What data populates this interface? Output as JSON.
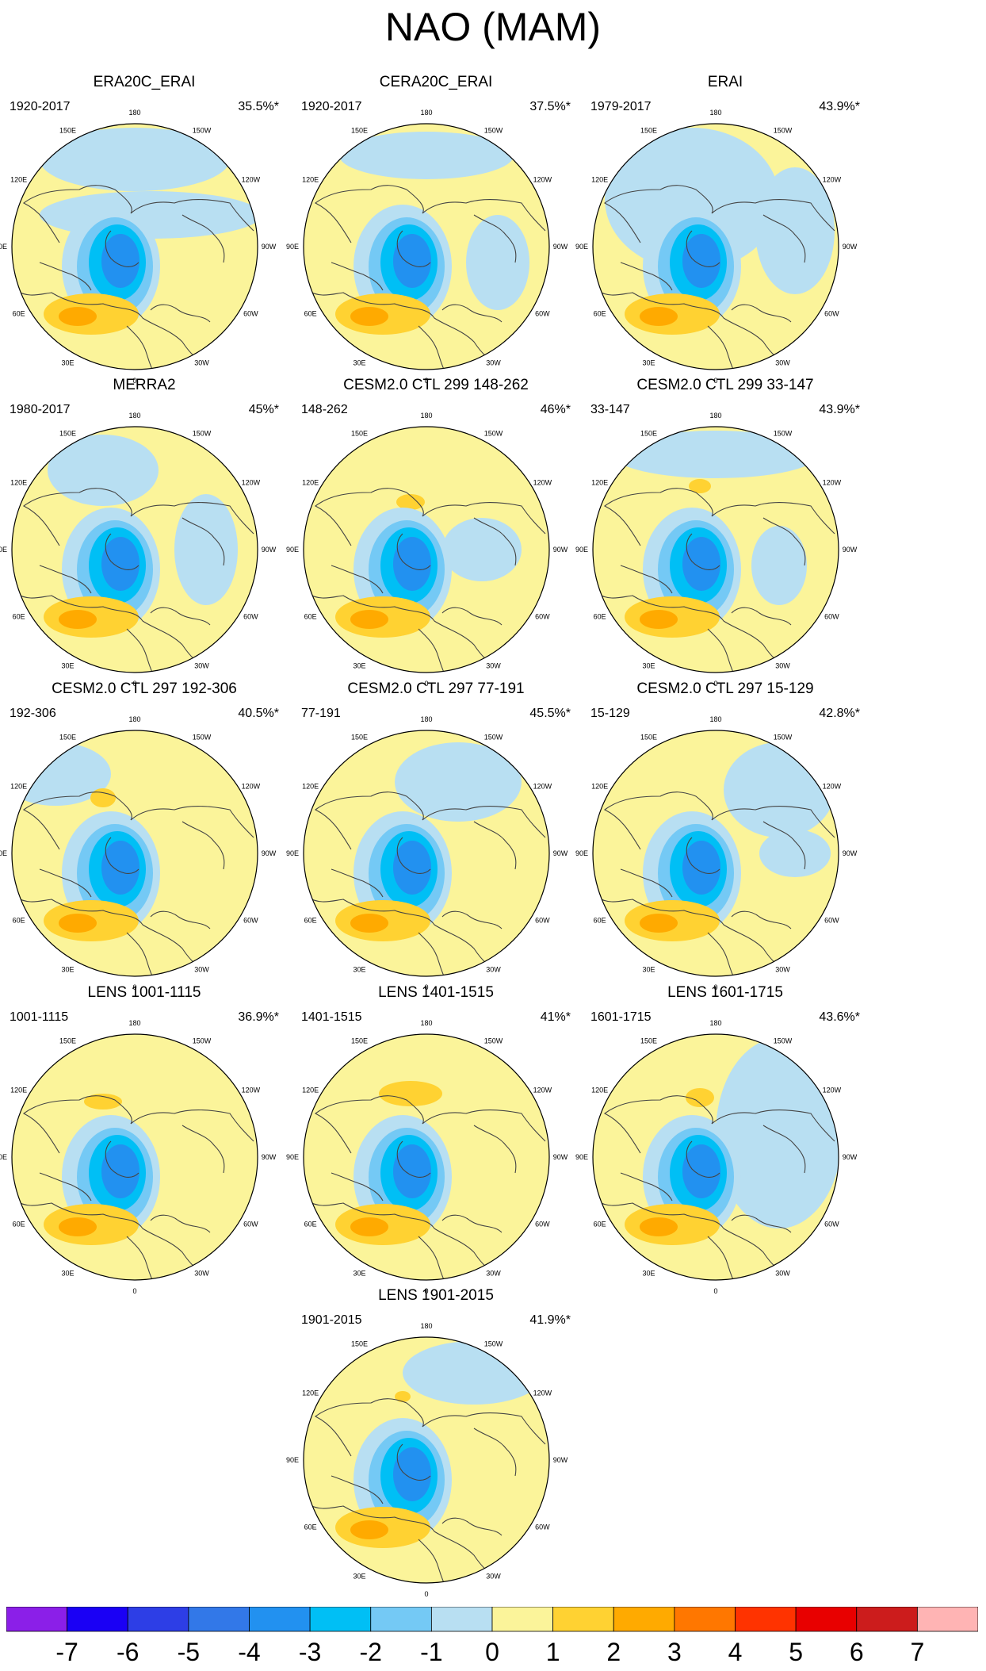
{
  "title": "NAO (MAM)",
  "panels": [
    {
      "title": "ERA20C_ERAI",
      "period": "1920-2017",
      "pct": "35.5%*"
    },
    {
      "title": "CERA20C_ERAI",
      "period": "1920-2017",
      "pct": "37.5%*"
    },
    {
      "title": "ERAI",
      "period": "1979-2017",
      "pct": "43.9%*"
    },
    {
      "title": "MERRA2",
      "period": "1980-2017",
      "pct": "45%*"
    },
    {
      "title": "CESM2.0 CTL 299 148-262",
      "period": "148-262",
      "pct": "46%*"
    },
    {
      "title": "CESM2.0 CTL 299 33-147",
      "period": "33-147",
      "pct": "43.9%*"
    },
    {
      "title": "CESM2.0 CTL 297 192-306",
      "period": "192-306",
      "pct": "40.5%*"
    },
    {
      "title": "CESM2.0 CTL 297 77-191",
      "period": "77-191",
      "pct": "45.5%*"
    },
    {
      "title": "CESM2.0 CTL 297 15-129",
      "period": "15-129",
      "pct": "42.8%*"
    },
    {
      "title": "LENS 1001-1115",
      "period": "1001-1115",
      "pct": "36.9%*"
    },
    {
      "title": "LENS 1401-1515",
      "period": "1401-1515",
      "pct": "41%*"
    },
    {
      "title": "LENS 1601-1715",
      "period": "1601-1715",
      "pct": "43.6%*"
    },
    {
      "title": "LENS 1901-2015",
      "period": "1901-2015",
      "pct": "41.9%*"
    }
  ],
  "map_labels": [
    "180",
    "150W",
    "150E",
    "120W",
    "120E",
    "90W",
    "90E",
    "60W",
    "60E",
    "30W",
    "30E",
    "0"
  ],
  "colorbar": {
    "ticks": [
      "-7",
      "-6",
      "-5",
      "-4",
      "-3",
      "-2",
      "-1",
      "0",
      "1",
      "2",
      "3",
      "4",
      "5",
      "6",
      "7"
    ],
    "colors": [
      "#8b1fe8",
      "#1a00f5",
      "#2d3ee6",
      "#3278e8",
      "#2291f0",
      "#00bff5",
      "#74c9f5",
      "#b8dff2",
      "#fbf49a",
      "#ffd232",
      "#ffaa00",
      "#ff7700",
      "#ff3300",
      "#e80000",
      "#cc1c1c",
      "#ffb4b4"
    ]
  }
}
